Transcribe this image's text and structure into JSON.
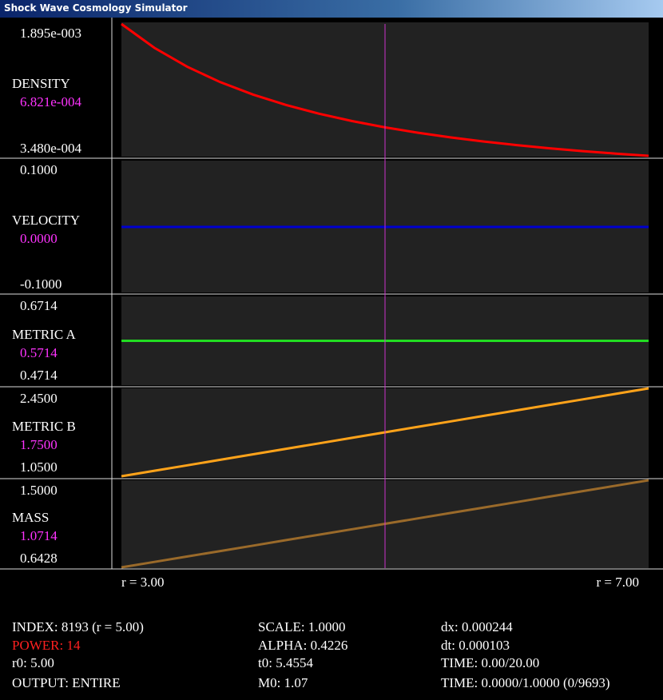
{
  "window_title": "Shock Wave Cosmology Simulator",
  "x": [
    3,
    3.25,
    3.5,
    3.75,
    4,
    4.25,
    4.5,
    4.75,
    5,
    5.25,
    5.5,
    5.75,
    6,
    6.25,
    6.5,
    6.75,
    7
  ],
  "xlim": [
    {
      "value": 3,
      "label": "r = 3.00"
    },
    {
      "value": 7,
      "label": "r = 7.00"
    }
  ],
  "cursor_r": 5,
  "panels": [
    {
      "label": "DENSITY",
      "color": "#ff0000",
      "ymax": {
        "value": 0.001895,
        "label": "1.895e-003"
      },
      "ymin": {
        "value": 0.000348,
        "label": "3.480e-004"
      },
      "current": {
        "value": 0.0006821,
        "label": "6.821e-004"
      },
      "values": [
        0.001895,
        0.0016147,
        0.0013922,
        0.0012128,
        0.0010659,
        0.0009442,
        0.0008422,
        0.0007559,
        0.0006821,
        0.0006188,
        0.0005638,
        0.0005158,
        0.0004738,
        0.0004366,
        0.0004037,
        0.0003743,
        0.000348
      ]
    },
    {
      "label": "VELOCITY",
      "color": "#0000d0",
      "ymax": {
        "value": 0.1,
        "label": "0.1000"
      },
      "ymin": {
        "value": -0.1,
        "label": "-0.1000"
      },
      "current": {
        "value": 0,
        "label": "0.0000"
      },
      "values": [
        0,
        0,
        0,
        0,
        0,
        0,
        0,
        0,
        0,
        0,
        0,
        0,
        0,
        0,
        0,
        0,
        0
      ]
    },
    {
      "label": "METRIC A",
      "color": "#22dd22",
      "ymax": {
        "value": 0.6714,
        "label": "0.6714"
      },
      "ymin": {
        "value": 0.4714,
        "label": "0.4714"
      },
      "current": {
        "value": 0.5714,
        "label": "0.5714"
      },
      "values": [
        0.5714,
        0.5714,
        0.5714,
        0.5714,
        0.5714,
        0.5714,
        0.5714,
        0.5714,
        0.5714,
        0.5714,
        0.5714,
        0.5714,
        0.5714,
        0.5714,
        0.5714,
        0.5714,
        0.5714
      ]
    },
    {
      "label": "METRIC B",
      "color": "#ffa31a",
      "ymax": {
        "value": 2.45,
        "label": "2.4500"
      },
      "ymin": {
        "value": 1.05,
        "label": "1.0500"
      },
      "current": {
        "value": 1.75,
        "label": "1.7500"
      },
      "values": [
        1.05,
        1.1375,
        1.225,
        1.3125,
        1.4,
        1.4875,
        1.575,
        1.6625,
        1.75,
        1.8375,
        1.925,
        2.0125,
        2.1,
        2.1875,
        2.275,
        2.3625,
        2.45
      ]
    },
    {
      "label": "MASS",
      "color": "#9a6a2a",
      "ymax": {
        "value": 1.5,
        "label": "1.5000"
      },
      "ymin": {
        "value": 0.6428,
        "label": "0.6428"
      },
      "current": {
        "value": 1.0714,
        "label": "1.0714"
      },
      "values": [
        0.6428,
        0.6964,
        0.75,
        0.8036,
        0.8571,
        0.9107,
        0.9643,
        1.0178,
        1.0714,
        1.125,
        1.1785,
        1.2321,
        1.2857,
        1.3393,
        1.3928,
        1.4464,
        1.5
      ]
    }
  ],
  "info": [
    [
      "INDEX: 8193 (r = 5.00)",
      "POWER: 14",
      "r0: 5.00",
      "OUTPUT: ENTIRE"
    ],
    [
      "SCALE: 1.0000",
      "ALPHA: 0.4226",
      "t0: 5.4554",
      "M0: 1.07"
    ],
    [
      "dx: 0.000244",
      "dt: 0.000103",
      "TIME: 0.00/20.00",
      "TIME: 0.0000/1.0000 (0/9693)"
    ]
  ]
}
